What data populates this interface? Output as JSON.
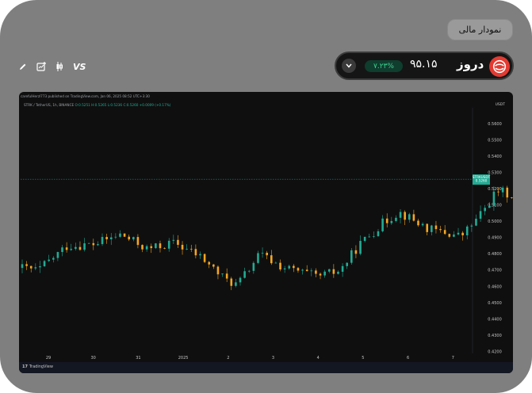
{
  "header": {
    "financial_chart_button": "نمودار مالی"
  },
  "toolbar": {
    "vs_label": "VS",
    "icons": [
      "pencil-icon",
      "add-chart-icon",
      "candlestick-icon"
    ]
  },
  "stock": {
    "symbol": "دروز",
    "price": "۹۵.۱۵",
    "change": "۷.۲۳%",
    "colors": {
      "positive": "#3fd08f",
      "logo": "#e33b32"
    }
  },
  "chart": {
    "publish_line": "carefulHerzl773 published on TradingView.com, Jan 06, 2025 08:52 UTC+3:30",
    "pair_line": "STRK / TetherUS, 1h, BINANCE",
    "ohlc": {
      "o": "O:0.5251",
      "h": "H:0.5265",
      "l": "L:0.5236",
      "c": "C:0.5260",
      "chg": "+0.0009 (+0.17%)"
    },
    "unit_label": "USDT",
    "price_tag_symbol": "STRKUSDT",
    "price_tag_value": "0.5260",
    "price_tag_time": "32:08",
    "brand": "TradingView"
  },
  "chart_data": {
    "type": "candlestick",
    "title": "STRK / TetherUS, 1h, BINANCE",
    "y_ticks": [
      "0.5600",
      "0.5500",
      "0.5400",
      "0.5300",
      "0.5200",
      "0.5100",
      "0.5000",
      "0.4900",
      "0.4800",
      "0.4700",
      "0.4600",
      "0.4500",
      "0.4400",
      "0.4300",
      "0.4200"
    ],
    "x_ticks": [
      "29",
      "30",
      "31",
      "2025",
      "2",
      "3",
      "4",
      "5",
      "6",
      "7"
    ],
    "ylim": [
      0.42,
      0.565
    ],
    "last_price": 0.526,
    "colors": {
      "up": "#22ab94",
      "down": "#f5a623"
    },
    "segments": [
      {
        "x": 0.0,
        "price": 0.4715
      },
      {
        "x": 0.35,
        "price": 0.47
      },
      {
        "x": 1.0,
        "price": 0.485
      },
      {
        "x": 1.6,
        "price": 0.486
      },
      {
        "x": 2.2,
        "price": 0.492
      },
      {
        "x": 2.8,
        "price": 0.483
      },
      {
        "x": 3.4,
        "price": 0.487
      },
      {
        "x": 4.0,
        "price": 0.478
      },
      {
        "x": 4.5,
        "price": 0.465
      },
      {
        "x": 4.8,
        "price": 0.461
      },
      {
        "x": 5.3,
        "price": 0.48
      },
      {
        "x": 5.8,
        "price": 0.472
      },
      {
        "x": 6.6,
        "price": 0.466
      },
      {
        "x": 7.1,
        "price": 0.47
      },
      {
        "x": 7.5,
        "price": 0.485
      },
      {
        "x": 8.0,
        "price": 0.498
      },
      {
        "x": 8.4,
        "price": 0.506
      },
      {
        "x": 9.1,
        "price": 0.495
      },
      {
        "x": 9.8,
        "price": 0.491
      },
      {
        "x": 10.2,
        "price": 0.503
      },
      {
        "x": 10.6,
        "price": 0.519
      },
      {
        "x": 11.2,
        "price": 0.514
      },
      {
        "x": 11.6,
        "price": 0.519
      },
      {
        "x": 12.1,
        "price": 0.524
      },
      {
        "x": 12.4,
        "price": 0.532
      },
      {
        "x": 12.8,
        "price": 0.53
      },
      {
        "x": 13.3,
        "price": 0.523
      },
      {
        "x": 13.8,
        "price": 0.52
      },
      {
        "x": 14.4,
        "price": 0.518
      },
      {
        "x": 14.9,
        "price": 0.526
      }
    ]
  }
}
